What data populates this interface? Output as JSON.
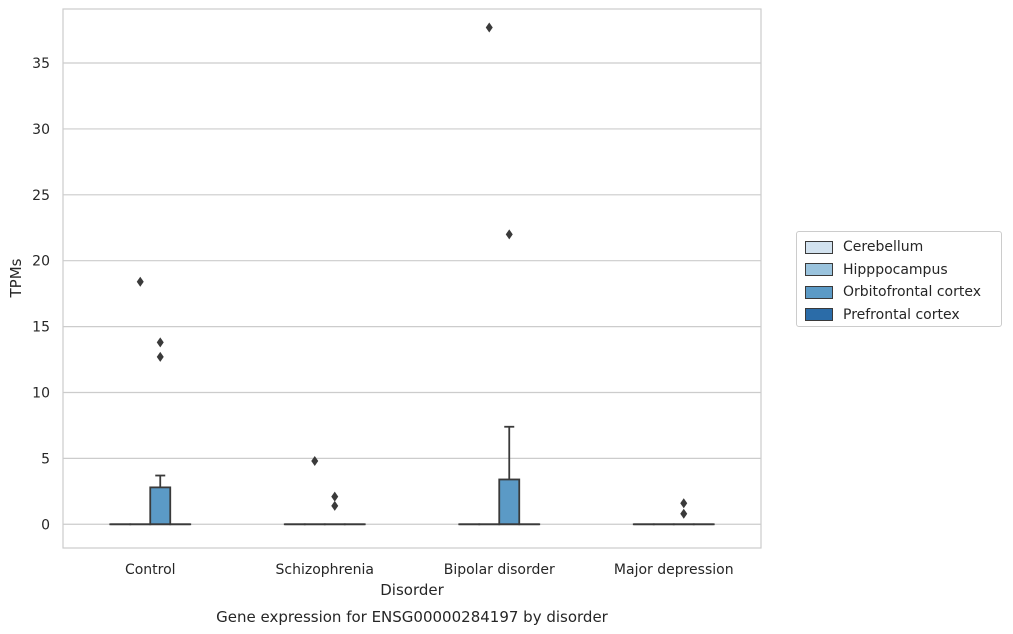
{
  "chart_data": {
    "type": "box",
    "title": "",
    "caption": "Gene expression for ENSG00000284197 by disorder",
    "xlabel": "Disorder",
    "ylabel": "TPMs",
    "ylim": [
      -1.8,
      39.1
    ],
    "yticks": [
      0,
      5,
      10,
      15,
      20,
      25,
      30,
      35
    ],
    "grid": "horizontal",
    "legend_position": "right",
    "categories": [
      "Control",
      "Schizophrenia",
      "Bipolar disorder",
      "Major depression"
    ],
    "series": [
      {
        "name": "Cerebellum",
        "color": "#d2e2ef",
        "boxes": [
          {
            "q1": 0,
            "median": 0,
            "q3": 0,
            "whisker_low": 0,
            "whisker_high": 0,
            "outliers": []
          },
          {
            "q1": 0,
            "median": 0,
            "q3": 0,
            "whisker_low": 0,
            "whisker_high": 0,
            "outliers": []
          },
          {
            "q1": 0,
            "median": 0,
            "q3": 0,
            "whisker_low": 0,
            "whisker_high": 0,
            "outliers": []
          },
          {
            "q1": 0,
            "median": 0,
            "q3": 0,
            "whisker_low": 0,
            "whisker_high": 0,
            "outliers": []
          }
        ]
      },
      {
        "name": "Hipppocampus",
        "color": "#9ac3dd",
        "boxes": [
          {
            "q1": 0,
            "median": 0,
            "q3": 0,
            "whisker_low": 0,
            "whisker_high": 0,
            "outliers": [
              18.4
            ]
          },
          {
            "q1": 0,
            "median": 0,
            "q3": 0,
            "whisker_low": 0,
            "whisker_high": 0,
            "outliers": [
              4.8
            ]
          },
          {
            "q1": 0,
            "median": 0,
            "q3": 0,
            "whisker_low": 0,
            "whisker_high": 0,
            "outliers": [
              37.7
            ]
          },
          {
            "q1": 0,
            "median": 0,
            "q3": 0,
            "whisker_low": 0,
            "whisker_high": 0,
            "outliers": []
          }
        ]
      },
      {
        "name": "Orbitofrontal cortex",
        "color": "#5b9ac6",
        "boxes": [
          {
            "q1": 0,
            "median": 0,
            "q3": 2.8,
            "whisker_low": 0,
            "whisker_high": 3.7,
            "outliers": [
              13.8,
              12.7
            ]
          },
          {
            "q1": 0,
            "median": 0,
            "q3": 0,
            "whisker_low": 0,
            "whisker_high": 0,
            "outliers": [
              2.1,
              1.4
            ]
          },
          {
            "q1": 0,
            "median": 0,
            "q3": 3.4,
            "whisker_low": 0,
            "whisker_high": 7.4,
            "outliers": [
              22.0
            ]
          },
          {
            "q1": 0,
            "median": 0,
            "q3": 0,
            "whisker_low": 0,
            "whisker_high": 0,
            "outliers": [
              1.6,
              0.8
            ]
          }
        ]
      },
      {
        "name": "Prefrontal cortex",
        "color": "#2b6ca8",
        "boxes": [
          {
            "q1": 0,
            "median": 0,
            "q3": 0,
            "whisker_low": 0,
            "whisker_high": 0,
            "outliers": []
          },
          {
            "q1": 0,
            "median": 0,
            "q3": 0,
            "whisker_low": 0,
            "whisker_high": 0,
            "outliers": []
          },
          {
            "q1": 0,
            "median": 0,
            "q3": 0,
            "whisker_low": 0,
            "whisker_high": 0,
            "outliers": []
          },
          {
            "q1": 0,
            "median": 0,
            "q3": 0,
            "whisker_low": 0,
            "whisker_high": 0,
            "outliers": []
          }
        ]
      }
    ],
    "colors": {
      "grid": "#cccccc",
      "frame": "#cccccc",
      "box_edge": "#3a3a3a"
    }
  }
}
